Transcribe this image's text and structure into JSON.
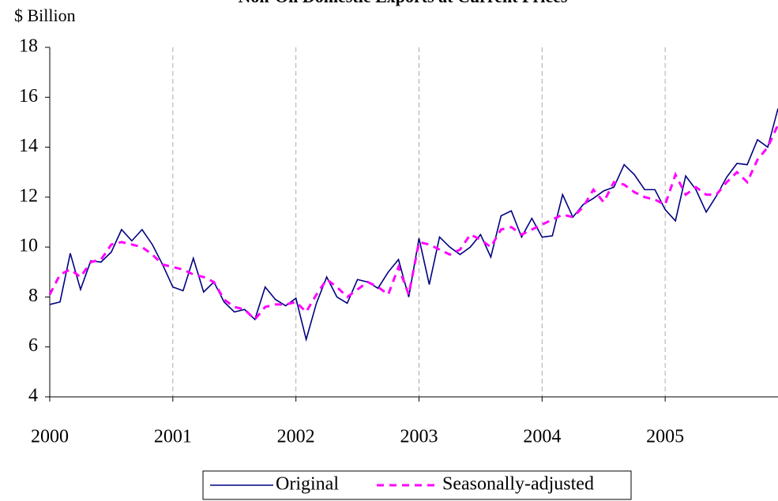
{
  "chart_data": {
    "type": "line",
    "title": "Non-Oil Domestic Exports at Current Prices",
    "y_label": "$ Billion",
    "categories": [
      "2000",
      null,
      null,
      null,
      null,
      null,
      null,
      null,
      null,
      null,
      null,
      null,
      "2001",
      null,
      null,
      null,
      null,
      null,
      null,
      null,
      null,
      null,
      null,
      null,
      "2002",
      null,
      null,
      null,
      null,
      null,
      null,
      null,
      null,
      null,
      null,
      null,
      "2003",
      null,
      null,
      null,
      null,
      null,
      null,
      null,
      null,
      null,
      null,
      null,
      "2004",
      null,
      null,
      null,
      null,
      null,
      null,
      null,
      null,
      null,
      null,
      null,
      "2005",
      null,
      null,
      null,
      null,
      null,
      null,
      null,
      null,
      null,
      null,
      null
    ],
    "series": [
      {
        "name": "Original",
        "color": "#000080",
        "dash": false,
        "values": [
          7.7,
          7.8,
          9.75,
          8.3,
          9.45,
          9.4,
          9.8,
          10.7,
          10.25,
          10.7,
          10.1,
          9.3,
          8.4,
          8.25,
          9.55,
          8.2,
          8.6,
          7.8,
          7.4,
          7.5,
          7.1,
          8.4,
          7.9,
          7.65,
          7.95,
          6.3,
          7.75,
          8.8,
          8.0,
          7.75,
          8.7,
          8.6,
          8.35,
          9.0,
          9.5,
          8.0,
          10.35,
          8.5,
          10.4,
          10.0,
          9.7,
          10.0,
          10.5,
          9.6,
          11.25,
          11.45,
          10.4,
          11.15,
          10.4,
          10.45,
          12.1,
          11.2,
          11.7,
          11.95,
          12.25,
          12.4,
          13.3,
          12.9,
          12.3,
          12.3,
          11.5,
          11.05,
          12.85,
          12.3,
          11.4,
          12.05,
          12.8,
          13.35,
          13.3,
          14.3,
          14.0,
          15.55
        ]
      },
      {
        "name": "Seasonally-adjusted",
        "color": "#ff00ff",
        "dash": true,
        "values": [
          8.1,
          8.9,
          9.1,
          8.8,
          9.4,
          9.5,
          10.1,
          10.2,
          10.1,
          10.0,
          9.7,
          9.3,
          9.2,
          9.1,
          8.9,
          8.8,
          8.6,
          7.9,
          7.6,
          7.5,
          7.1,
          7.6,
          7.7,
          7.7,
          7.8,
          7.4,
          8.1,
          8.7,
          8.4,
          8.0,
          8.3,
          8.6,
          8.4,
          8.1,
          9.2,
          8.1,
          10.2,
          10.1,
          9.9,
          9.7,
          9.9,
          10.5,
          10.3,
          10.0,
          10.7,
          10.8,
          10.5,
          10.7,
          10.9,
          11.1,
          11.3,
          11.2,
          11.6,
          12.3,
          11.8,
          12.6,
          12.5,
          12.2,
          12.0,
          11.9,
          11.7,
          12.9,
          12.1,
          12.4,
          12.1,
          12.1,
          12.6,
          13.0,
          12.6,
          13.5,
          14.0,
          14.9
        ]
      }
    ],
    "ylim": [
      4,
      18
    ],
    "yticks": [
      4,
      6,
      8,
      10,
      12,
      14,
      16,
      18
    ],
    "grid": true,
    "legend": "bottom"
  }
}
